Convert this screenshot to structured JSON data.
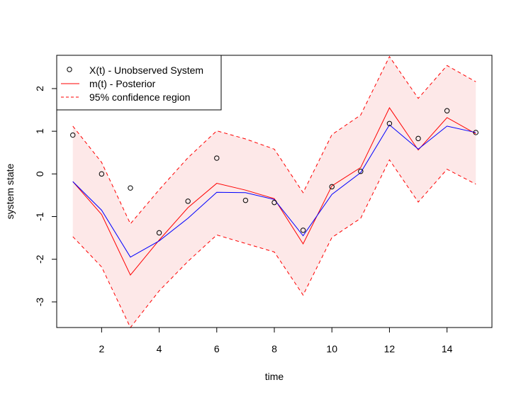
{
  "chart_data": {
    "type": "line",
    "title": "",
    "xlabel": "time",
    "ylabel": "system state",
    "xlim": [
      0.44,
      15.56
    ],
    "ylim": [
      -3.6,
      2.78
    ],
    "xticks": [
      2,
      4,
      6,
      8,
      10,
      12,
      14
    ],
    "yticks": [
      -3,
      -2,
      -1,
      0,
      1,
      2
    ],
    "grid": false,
    "legend_position": "top-left",
    "legend": [
      {
        "label": "X(t) - Unobserved System",
        "style": "points",
        "color": "#000000"
      },
      {
        "label": "m(t) - Posterior",
        "style": "solid",
        "color": "#ff0000"
      },
      {
        "label": "95% confidence region",
        "style": "dashed",
        "color": "#ff0000"
      }
    ],
    "band_fill": "#fde8e8",
    "x": [
      1,
      2,
      3,
      4,
      5,
      6,
      7,
      8,
      9,
      10,
      11,
      12,
      13,
      14,
      15
    ],
    "series": [
      {
        "name": "X(t) - Unobserved System",
        "style": "points",
        "color": "#000000",
        "values": [
          0.91,
          0.0,
          -0.33,
          -1.38,
          -0.64,
          0.37,
          -0.62,
          -0.67,
          -1.32,
          -0.3,
          0.06,
          1.18,
          0.83,
          1.48,
          0.97
        ]
      },
      {
        "name": "m(t) - Posterior",
        "style": "solid",
        "color": "#ff0000",
        "values": [
          -0.18,
          -0.95,
          -2.37,
          -1.55,
          -0.79,
          -0.22,
          -0.38,
          -0.58,
          -1.64,
          -0.28,
          0.15,
          1.55,
          0.56,
          1.32,
          0.94
        ]
      },
      {
        "style": "solid",
        "color": "#0000ff",
        "values": [
          -0.18,
          -0.85,
          -1.95,
          -1.57,
          -1.04,
          -0.43,
          -0.44,
          -0.6,
          -1.45,
          -0.48,
          0.03,
          1.15,
          0.58,
          1.12,
          0.97
        ]
      },
      {
        "name": "95% confidence region",
        "style": "dashed",
        "color": "#ff0000",
        "role": "upper",
        "values": [
          1.12,
          0.27,
          -1.17,
          -0.37,
          0.38,
          1.01,
          0.82,
          0.58,
          -0.44,
          0.92,
          1.38,
          2.75,
          1.77,
          2.54,
          2.16
        ]
      },
      {
        "name": "95% confidence region",
        "style": "dashed",
        "color": "#ff0000",
        "role": "lower",
        "values": [
          -1.47,
          -2.18,
          -3.6,
          -2.74,
          -2.05,
          -1.43,
          -1.63,
          -1.83,
          -2.84,
          -1.49,
          -1.04,
          0.33,
          -0.66,
          0.11,
          -0.24
        ]
      }
    ]
  }
}
